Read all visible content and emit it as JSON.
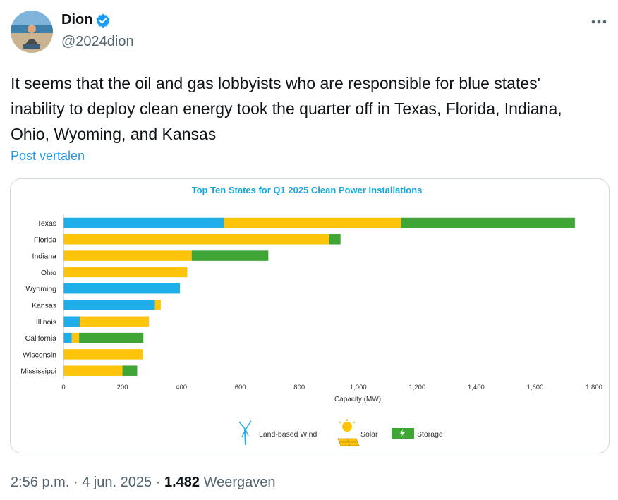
{
  "user": {
    "name": "Dion",
    "handle": "@2024dion"
  },
  "tweet": {
    "text": "It seems that the oil and gas lobbyists who are responsible for blue states' inability to deploy clean energy took the quarter off in Texas, Florida, Indiana, Ohio, Wyoming, and Kansas",
    "translate_label": "Post vertalen"
  },
  "footer": {
    "time": "2:56 p.m.",
    "sep1": "·",
    "date": "4 jun. 2025",
    "sep2": "·",
    "views": "1.482",
    "views_label": "Weergaven"
  },
  "icons": {
    "verified": "verified-badge-icon",
    "more": "more-options-icon",
    "wind": "wind-turbine-icon",
    "solar": "solar-panel-icon",
    "storage": "battery-storage-icon"
  },
  "colors": {
    "accent": "#1d9bf0",
    "wind": "#1eaeea",
    "solar": "#fec40b",
    "storage": "#3fa535",
    "chart_title": "#1aa5dd"
  },
  "chart_data": {
    "type": "bar",
    "orientation": "horizontal",
    "stacked": true,
    "title": "Top Ten States for Q1 2025 Clean Power Installations",
    "xlabel": "Capacity (MW)",
    "ylabel": "",
    "xlim": [
      0,
      1800
    ],
    "xticks": [
      0,
      200,
      400,
      600,
      800,
      1000,
      1200,
      1400,
      1600,
      1800
    ],
    "xtick_labels": [
      "0",
      "200",
      "400",
      "600",
      "800",
      "1,000",
      "1,200",
      "1,400",
      "1,600",
      "1,800"
    ],
    "grid": false,
    "legend_position": "bottom",
    "categories": [
      "Texas",
      "Florida",
      "Indiana",
      "Ohio",
      "Wyoming",
      "Kansas",
      "Illinois",
      "California",
      "Wisconsin",
      "Mississippi"
    ],
    "series": [
      {
        "name": "Land-based Wind",
        "color": "#1eaeea",
        "values": [
          545,
          0,
          0,
          0,
          395,
          310,
          55,
          28,
          0,
          0
        ]
      },
      {
        "name": "Solar",
        "color": "#fec40b",
        "values": [
          600,
          900,
          435,
          420,
          0,
          20,
          235,
          25,
          268,
          200
        ]
      },
      {
        "name": "Storage",
        "color": "#3fa535",
        "values": [
          590,
          40,
          260,
          0,
          0,
          0,
          0,
          218,
          0,
          50
        ]
      }
    ]
  }
}
